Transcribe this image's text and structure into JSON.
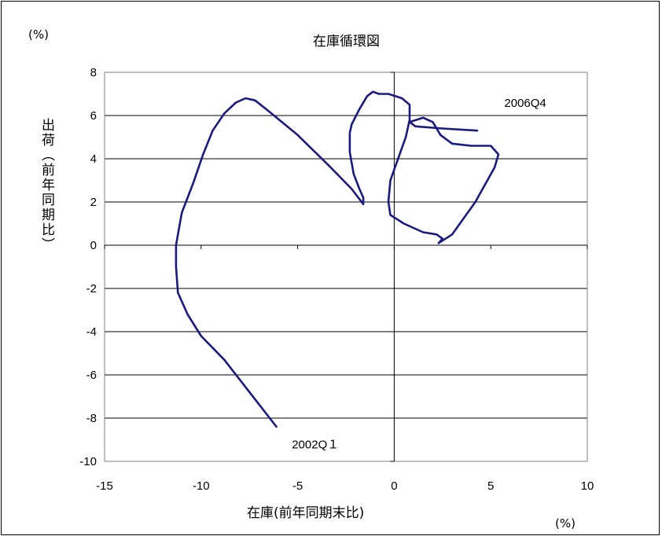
{
  "chart_data": {
    "type": "line",
    "title": "在庫循環図",
    "xlabel": "在庫(前年同期末比)",
    "ylabel": "出荷（前年同期比）",
    "x_unit": "(%)",
    "y_unit": "(%)",
    "xlim": [
      -15,
      10
    ],
    "ylim": [
      -10,
      8
    ],
    "x_ticks": [
      -15,
      -10,
      -5,
      0,
      5,
      10
    ],
    "y_ticks": [
      8,
      6,
      4,
      2,
      0,
      -2,
      -4,
      -6,
      -8,
      -10
    ],
    "grid": "horizontal",
    "series": [
      {
        "color": "#1a1a80",
        "points": [
          [
            -6.1,
            -8.4
          ],
          [
            -8.8,
            -5.3
          ],
          [
            -10.0,
            -4.2
          ],
          [
            -10.7,
            -3.2
          ],
          [
            -11.2,
            -2.2
          ],
          [
            -11.3,
            -1.0
          ],
          [
            -11.3,
            0.0
          ],
          [
            -11.0,
            1.5
          ],
          [
            -10.4,
            2.9
          ],
          [
            -9.9,
            4.2
          ],
          [
            -9.4,
            5.3
          ],
          [
            -8.8,
            6.1
          ],
          [
            -8.2,
            6.6
          ],
          [
            -7.7,
            6.8
          ],
          [
            -7.2,
            6.7
          ],
          [
            -6.5,
            6.2
          ],
          [
            -5.0,
            5.1
          ],
          [
            -3.4,
            3.7
          ],
          [
            -2.2,
            2.6
          ],
          [
            -1.6,
            1.9
          ],
          [
            -1.6,
            2.2
          ],
          [
            -1.8,
            2.6
          ],
          [
            -2.1,
            3.3
          ],
          [
            -2.3,
            4.3
          ],
          [
            -2.3,
            5.2
          ],
          [
            -2.2,
            5.6
          ],
          [
            -1.8,
            6.3
          ],
          [
            -1.4,
            6.9
          ],
          [
            -1.1,
            7.1
          ],
          [
            -0.8,
            7.0
          ],
          [
            -0.3,
            7.0
          ],
          [
            0.4,
            6.8
          ],
          [
            0.8,
            6.5
          ],
          [
            0.8,
            5.8
          ],
          [
            0.6,
            5.0
          ],
          [
            0.2,
            4.0
          ],
          [
            -0.2,
            3.0
          ],
          [
            -0.3,
            2.0
          ],
          [
            -0.2,
            1.4
          ],
          [
            0.5,
            1.0
          ],
          [
            1.5,
            0.6
          ],
          [
            2.2,
            0.5
          ],
          [
            2.5,
            0.3
          ],
          [
            2.3,
            0.1
          ],
          [
            3.0,
            0.5
          ],
          [
            4.2,
            2.0
          ],
          [
            5.2,
            3.6
          ],
          [
            5.4,
            4.2
          ],
          [
            5.0,
            4.6
          ],
          [
            4.0,
            4.6
          ],
          [
            3.0,
            4.7
          ],
          [
            2.4,
            5.1
          ],
          [
            2.0,
            5.7
          ],
          [
            1.5,
            5.9
          ],
          [
            0.8,
            5.7
          ],
          [
            1.1,
            5.5
          ],
          [
            2.5,
            5.4
          ],
          [
            4.3,
            5.3
          ]
        ]
      }
    ],
    "annotations": [
      {
        "text": "2002Q１",
        "x": -5.3,
        "y": -9.4
      },
      {
        "text": "2006Q4",
        "x": 5.7,
        "y": 6.4
      }
    ]
  }
}
